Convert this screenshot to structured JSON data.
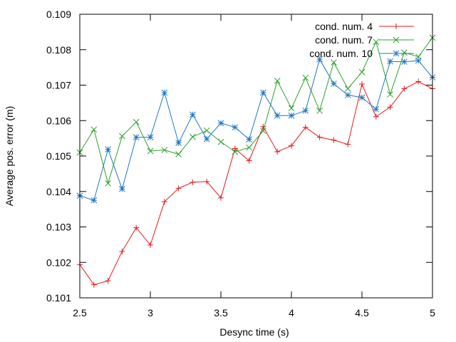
{
  "chart_data": {
    "type": "line",
    "title": "",
    "xlabel": "Desync time (s)",
    "ylabel": "Average pos. error (m)",
    "xlim": [
      2.5,
      5
    ],
    "ylim": [
      0.101,
      0.109
    ],
    "xticks": [
      2.5,
      3,
      3.5,
      4,
      4.5,
      5
    ],
    "xtick_labels": [
      "2.5",
      "3",
      "3.5",
      "4",
      "4.5",
      "5"
    ],
    "yticks": [
      0.101,
      0.102,
      0.103,
      0.104,
      0.105,
      0.106,
      0.107,
      0.108,
      0.109
    ],
    "ytick_labels": [
      "0.101",
      "0.102",
      "0.103",
      "0.104",
      "0.105",
      "0.106",
      "0.107",
      "0.108",
      "0.109"
    ],
    "grid": false,
    "legend_position": "top-right",
    "x": [
      2.5,
      2.6,
      2.7,
      2.8,
      2.9,
      3.0,
      3.1,
      3.2,
      3.3,
      3.4,
      3.5,
      3.6,
      3.7,
      3.8,
      3.9,
      4.0,
      4.1,
      4.2,
      4.3,
      4.4,
      4.5,
      4.6,
      4.7,
      4.8,
      4.9,
      5.0
    ],
    "series": [
      {
        "name": "cond. num. 4",
        "color": "#e41a1c",
        "marker": "plus",
        "values": [
          0.10194,
          0.10137,
          0.10148,
          0.10231,
          0.10298,
          0.10249,
          0.10371,
          0.10409,
          0.10426,
          0.10428,
          0.10382,
          0.10521,
          0.10487,
          0.10583,
          0.10512,
          0.10529,
          0.10581,
          0.10553,
          0.10545,
          0.10533,
          0.10703,
          0.10611,
          0.10638,
          0.1069,
          0.1071,
          0.1069
        ]
      },
      {
        "name": "cond. num. 7",
        "color": "#2ca02c",
        "marker": "cross",
        "values": [
          0.1051,
          0.10575,
          0.10423,
          0.10556,
          0.10596,
          0.10514,
          0.10517,
          0.10505,
          0.10554,
          0.10572,
          0.1054,
          0.10512,
          0.10524,
          0.10571,
          0.10712,
          0.10635,
          0.10721,
          0.10628,
          0.10764,
          0.1069,
          0.10737,
          0.10822,
          0.10674,
          0.10792,
          0.1078,
          0.10834
        ]
      },
      {
        "name": "cond. num. 10",
        "color": "#1f77c4",
        "marker": "star",
        "values": [
          0.10388,
          0.10375,
          0.10519,
          0.10407,
          0.10553,
          0.10553,
          0.10679,
          0.10537,
          0.10617,
          0.10548,
          0.10593,
          0.10581,
          0.10547,
          0.10679,
          0.10614,
          0.10614,
          0.10628,
          0.10773,
          0.10704,
          0.10672,
          0.10665,
          0.10632,
          0.10767,
          0.10766,
          0.10769,
          0.10722
        ]
      }
    ]
  }
}
